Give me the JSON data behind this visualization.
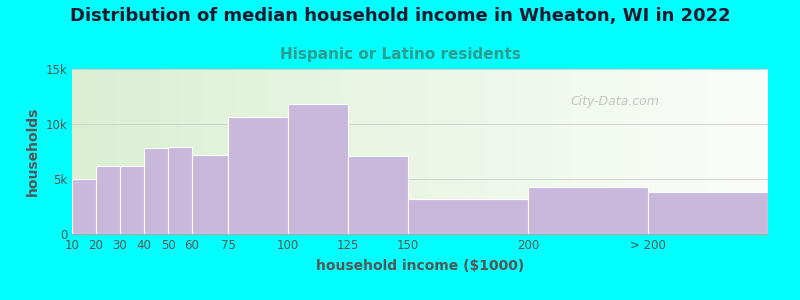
{
  "title": "Distribution of median household income in Wheaton, WI in 2022",
  "subtitle": "Hispanic or Latino residents",
  "xlabel": "household income ($1000)",
  "ylabel": "households",
  "background_color": "#00FFFF",
  "bar_color": "#c8b8dc",
  "bar_edge_color": "#ffffff",
  "categories": [
    "10",
    "20",
    "30",
    "40",
    "50",
    "60",
    "75",
    "100",
    "125",
    "150",
    "200",
    "> 200"
  ],
  "values": [
    5000,
    6200,
    6200,
    7800,
    7900,
    7200,
    10600,
    11800,
    7100,
    3200,
    4300,
    3800
  ],
  "edges": [
    10,
    20,
    30,
    40,
    50,
    60,
    75,
    100,
    125,
    150,
    200,
    250,
    300
  ],
  "ylim": [
    0,
    15000
  ],
  "yticks": [
    0,
    5000,
    10000,
    15000
  ],
  "ytick_labels": [
    "0",
    "5k",
    "10k",
    "15k"
  ],
  "title_fontsize": 13,
  "subtitle_fontsize": 11,
  "axis_label_fontsize": 10,
  "tick_fontsize": 8.5,
  "watermark_text": "City-Data.com",
  "title_color": "#1a1a2e",
  "subtitle_color": "#2a9d8f",
  "axis_label_color": "#555555",
  "tick_color": "#555555",
  "grid_color": "#cccccc"
}
